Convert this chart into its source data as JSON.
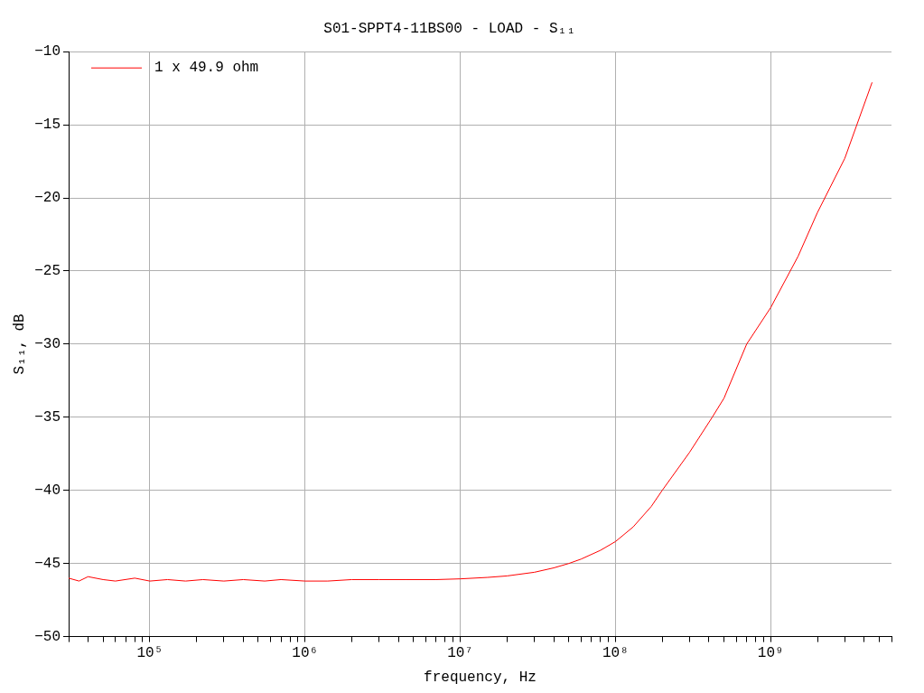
{
  "chart_data": {
    "type": "line",
    "title": "S01-SPPT4-11BS00 - LOAD - S₁₁",
    "xlabel": "frequency, Hz",
    "ylabel": "S₁₁, dB",
    "log": "x",
    "grid": true,
    "legend": "top left",
    "marker": "none",
    "line_style": "solid",
    "xlim": [
      30000,
      6000000000
    ],
    "ylim": [
      -50,
      -10
    ],
    "xticks": [
      {
        "value": 30000,
        "label": null
      },
      {
        "value": 40000,
        "label": null
      },
      {
        "value": 50000,
        "label": null
      },
      {
        "value": 60000,
        "label": null
      },
      {
        "value": 70000,
        "label": null
      },
      {
        "value": 80000,
        "label": null
      },
      {
        "value": 90000,
        "label": null
      },
      {
        "value": 100000,
        "label": "10⁵"
      },
      {
        "value": 200000,
        "label": null
      },
      {
        "value": 300000,
        "label": null
      },
      {
        "value": 400000,
        "label": null
      },
      {
        "value": 500000,
        "label": null
      },
      {
        "value": 600000,
        "label": null
      },
      {
        "value": 700000,
        "label": null
      },
      {
        "value": 800000,
        "label": null
      },
      {
        "value": 900000,
        "label": null
      },
      {
        "value": 1000000,
        "label": "10⁶"
      },
      {
        "value": 2000000,
        "label": null
      },
      {
        "value": 3000000,
        "label": null
      },
      {
        "value": 4000000,
        "label": null
      },
      {
        "value": 5000000,
        "label": null
      },
      {
        "value": 6000000,
        "label": null
      },
      {
        "value": 7000000,
        "label": null
      },
      {
        "value": 8000000,
        "label": null
      },
      {
        "value": 9000000,
        "label": null
      },
      {
        "value": 10000000,
        "label": "10⁷"
      },
      {
        "value": 20000000,
        "label": null
      },
      {
        "value": 30000000,
        "label": null
      },
      {
        "value": 40000000,
        "label": null
      },
      {
        "value": 50000000,
        "label": null
      },
      {
        "value": 60000000,
        "label": null
      },
      {
        "value": 70000000,
        "label": null
      },
      {
        "value": 80000000,
        "label": null
      },
      {
        "value": 90000000,
        "label": null
      },
      {
        "value": 100000000,
        "label": "10⁸"
      },
      {
        "value": 200000000,
        "label": null
      },
      {
        "value": 300000000,
        "label": null
      },
      {
        "value": 400000000,
        "label": null
      },
      {
        "value": 500000000,
        "label": null
      },
      {
        "value": 600000000,
        "label": null
      },
      {
        "value": 700000000,
        "label": null
      },
      {
        "value": 800000000,
        "label": null
      },
      {
        "value": 900000000,
        "label": null
      },
      {
        "value": 1000000000,
        "label": "10⁹"
      },
      {
        "value": 2000000000,
        "label": null
      },
      {
        "value": 3000000000,
        "label": null
      },
      {
        "value": 4000000000,
        "label": null
      },
      {
        "value": 5000000000,
        "label": null
      },
      {
        "value": 6000000000,
        "label": null
      }
    ],
    "yticks": [
      -50,
      -45,
      -40,
      -35,
      -30,
      -25,
      -20,
      -15,
      -10
    ],
    "series": [
      {
        "name": "1 x 49.9 ohm",
        "color": "#ff0000",
        "x": [
          30000,
          35000,
          40000,
          50000,
          60000,
          80000,
          100000,
          130000,
          170000,
          220000,
          300000,
          400000,
          550000,
          700000,
          1000000,
          1400000,
          2000000,
          3000000,
          4500000,
          7000000,
          10000000,
          15000000,
          20000000,
          30000000,
          40000000,
          50000000,
          60000000,
          80000000,
          100000000,
          130000000,
          170000000,
          200000000,
          300000000,
          420000000,
          500000000,
          700000000,
          1000000000,
          1500000000,
          2000000000,
          3000000000,
          4500000000
        ],
        "values": [
          -46.0,
          -46.2,
          -45.9,
          -46.1,
          -46.2,
          -46.0,
          -46.2,
          -46.1,
          -46.2,
          -46.1,
          -46.2,
          -46.1,
          -46.2,
          -46.1,
          -46.2,
          -46.2,
          -46.1,
          -46.1,
          -46.1,
          -46.1,
          -46.05,
          -45.95,
          -45.85,
          -45.6,
          -45.3,
          -45.0,
          -44.7,
          -44.1,
          -43.5,
          -42.5,
          -41.1,
          -40.0,
          -37.4,
          -35.0,
          -33.7,
          -30.0,
          -27.5,
          -24.0,
          -21.0,
          -17.3,
          -12.1
        ]
      }
    ]
  }
}
